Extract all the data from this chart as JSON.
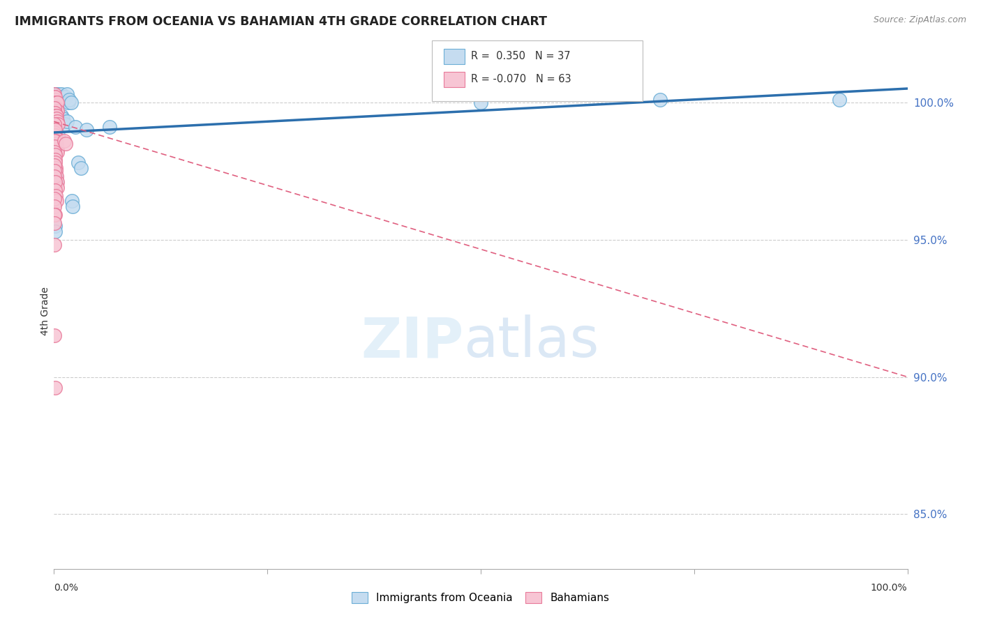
{
  "title": "IMMIGRANTS FROM OCEANIA VS BAHAMIAN 4TH GRADE CORRELATION CHART",
  "source": "Source: ZipAtlas.com",
  "ylabel": "4th Grade",
  "ytick_values": [
    85.0,
    90.0,
    95.0,
    100.0
  ],
  "xmin": 0.0,
  "xmax": 100.0,
  "ymin": 83.0,
  "ymax": 101.8,
  "r_blue": 0.35,
  "n_blue": 37,
  "r_pink": -0.07,
  "n_pink": 63,
  "legend_label_blue": "Immigrants from Oceania",
  "legend_label_pink": "Bahamians",
  "blue_scatter": [
    [
      0.15,
      100.3
    ],
    [
      0.25,
      100.3
    ],
    [
      0.35,
      100.2
    ],
    [
      0.5,
      100.3
    ],
    [
      0.6,
      100.2
    ],
    [
      0.8,
      100.1
    ],
    [
      0.9,
      100.3
    ],
    [
      1.05,
      100.2
    ],
    [
      1.2,
      100.1
    ],
    [
      1.4,
      100.2
    ],
    [
      1.55,
      100.3
    ],
    [
      1.65,
      100.0
    ],
    [
      1.8,
      100.1
    ],
    [
      2.0,
      100.0
    ],
    [
      0.3,
      99.5
    ],
    [
      0.55,
      99.4
    ],
    [
      0.7,
      99.3
    ],
    [
      0.85,
      99.5
    ],
    [
      1.0,
      99.4
    ],
    [
      1.3,
      99.2
    ],
    [
      1.5,
      99.3
    ],
    [
      2.5,
      99.1
    ],
    [
      3.8,
      99.0
    ],
    [
      0.2,
      98.9
    ],
    [
      0.45,
      98.8
    ],
    [
      6.5,
      99.1
    ],
    [
      2.8,
      97.8
    ],
    [
      3.2,
      97.6
    ],
    [
      0.18,
      97.3
    ],
    [
      0.28,
      97.1
    ],
    [
      2.1,
      96.4
    ],
    [
      2.2,
      96.2
    ],
    [
      0.12,
      95.5
    ],
    [
      0.15,
      95.3
    ],
    [
      50.0,
      100.0
    ],
    [
      71.0,
      100.1
    ],
    [
      92.0,
      100.1
    ]
  ],
  "pink_scatter": [
    [
      0.05,
      100.3
    ],
    [
      0.07,
      100.2
    ],
    [
      0.09,
      100.1
    ],
    [
      0.11,
      100.0
    ],
    [
      0.13,
      100.1
    ],
    [
      0.16,
      100.2
    ],
    [
      0.19,
      100.0
    ],
    [
      0.22,
      99.9
    ],
    [
      0.26,
      100.0
    ],
    [
      0.3,
      99.8
    ],
    [
      0.35,
      100.0
    ],
    [
      0.4,
      99.7
    ],
    [
      0.04,
      99.8
    ],
    [
      0.06,
      99.6
    ],
    [
      0.08,
      99.5
    ],
    [
      0.1,
      99.4
    ],
    [
      0.14,
      99.6
    ],
    [
      0.18,
      99.5
    ],
    [
      0.21,
      99.4
    ],
    [
      0.25,
      99.3
    ],
    [
      0.29,
      99.5
    ],
    [
      0.33,
      99.4
    ],
    [
      0.38,
      99.3
    ],
    [
      0.43,
      99.2
    ],
    [
      0.03,
      99.2
    ],
    [
      0.05,
      99.0
    ],
    [
      0.08,
      98.9
    ],
    [
      0.12,
      98.8
    ],
    [
      0.15,
      99.0
    ],
    [
      0.2,
      98.7
    ],
    [
      0.24,
      98.6
    ],
    [
      0.28,
      98.5
    ],
    [
      0.32,
      98.4
    ],
    [
      0.37,
      98.3
    ],
    [
      0.42,
      98.2
    ],
    [
      0.02,
      98.6
    ],
    [
      0.04,
      98.4
    ],
    [
      0.07,
      98.2
    ],
    [
      0.1,
      98.1
    ],
    [
      0.13,
      97.9
    ],
    [
      0.17,
      97.8
    ],
    [
      0.21,
      97.6
    ],
    [
      0.25,
      97.5
    ],
    [
      0.3,
      97.3
    ],
    [
      0.35,
      97.1
    ],
    [
      0.4,
      96.9
    ],
    [
      0.03,
      97.7
    ],
    [
      0.06,
      97.5
    ],
    [
      0.09,
      97.3
    ],
    [
      0.13,
      97.1
    ],
    [
      0.17,
      96.8
    ],
    [
      0.22,
      96.6
    ],
    [
      0.27,
      96.4
    ],
    [
      0.05,
      96.5
    ],
    [
      0.09,
      96.2
    ],
    [
      0.14,
      95.9
    ],
    [
      0.04,
      95.9
    ],
    [
      0.08,
      95.6
    ],
    [
      0.06,
      94.8
    ],
    [
      0.04,
      91.5
    ],
    [
      0.16,
      89.6
    ],
    [
      1.2,
      98.6
    ],
    [
      1.35,
      98.5
    ]
  ],
  "blue_line_x": [
    0.0,
    100.0
  ],
  "blue_line_y": [
    98.9,
    100.5
  ],
  "pink_line_x": [
    0.0,
    100.0
  ],
  "pink_line_y": [
    99.3,
    90.0
  ]
}
